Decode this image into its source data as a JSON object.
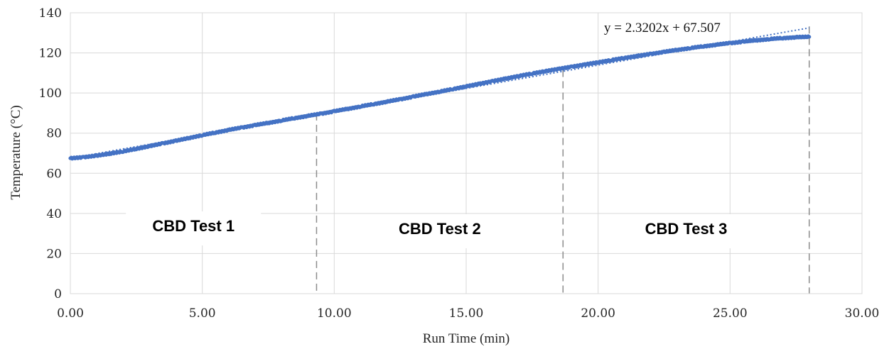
{
  "chart_data": {
    "type": "scatter",
    "title": "",
    "xlabel": "Run Time  (min)",
    "ylabel": "Temperature (°C)",
    "xlim": [
      0,
      30
    ],
    "ylim": [
      0,
      140
    ],
    "x_ticks": [
      "0.00",
      "5.00",
      "10.00",
      "15.00",
      "20.00",
      "25.00",
      "30.00"
    ],
    "y_ticks": [
      "0",
      "20",
      "40",
      "60",
      "80",
      "100",
      "120",
      "140"
    ],
    "grid": true,
    "series": [
      {
        "marker_color": "#4472c4",
        "points": [
          [
            0.0,
            67.5
          ],
          [
            0.5,
            68.0
          ],
          [
            1.0,
            68.8
          ],
          [
            1.5,
            69.8
          ],
          [
            2.0,
            70.9
          ],
          [
            2.5,
            72.2
          ],
          [
            3.0,
            73.5
          ],
          [
            3.5,
            74.9
          ],
          [
            4.0,
            76.2
          ],
          [
            4.5,
            77.6
          ],
          [
            5.0,
            79.0
          ],
          [
            5.5,
            80.3
          ],
          [
            6.0,
            81.6
          ],
          [
            6.5,
            82.8
          ],
          [
            7.0,
            84.0
          ],
          [
            7.5,
            85.1
          ],
          [
            8.0,
            86.3
          ],
          [
            8.5,
            87.5
          ],
          [
            9.0,
            88.6
          ],
          [
            9.5,
            89.7
          ],
          [
            10.0,
            90.9
          ],
          [
            10.5,
            92.1
          ],
          [
            11.0,
            93.3
          ],
          [
            11.5,
            94.5
          ],
          [
            12.0,
            95.7
          ],
          [
            12.5,
            96.9
          ],
          [
            13.0,
            98.2
          ],
          [
            13.5,
            99.5
          ],
          [
            14.0,
            100.7
          ],
          [
            14.5,
            102.0
          ],
          [
            15.0,
            103.3
          ],
          [
            15.5,
            104.6
          ],
          [
            16.0,
            105.9
          ],
          [
            16.5,
            107.2
          ],
          [
            17.0,
            108.5
          ],
          [
            17.5,
            109.7
          ],
          [
            18.0,
            110.9
          ],
          [
            18.5,
            112.0
          ],
          [
            19.0,
            113.1
          ],
          [
            19.5,
            114.2
          ],
          [
            20.0,
            115.3
          ],
          [
            20.5,
            116.4
          ],
          [
            21.0,
            117.5
          ],
          [
            21.5,
            118.5
          ],
          [
            22.0,
            119.5
          ],
          [
            22.5,
            120.5
          ],
          [
            23.0,
            121.5
          ],
          [
            23.5,
            122.4
          ],
          [
            24.0,
            123.3
          ],
          [
            24.5,
            124.1
          ],
          [
            25.0,
            124.9
          ],
          [
            25.5,
            125.6
          ],
          [
            26.0,
            126.3
          ],
          [
            26.5,
            126.9
          ],
          [
            27.0,
            127.4
          ],
          [
            27.5,
            127.8
          ],
          [
            28.0,
            128.0
          ]
        ]
      }
    ],
    "trendline": {
      "equation": "y = 2.3202x  + 67.507",
      "slope": 2.3202,
      "intercept": 67.507,
      "x_range": [
        0,
        28
      ],
      "color": "#4472c4",
      "style": "dotted"
    },
    "regions": [
      {
        "label": "CBD Test 1",
        "x_start": 0,
        "x_end": 9.33
      },
      {
        "label": "CBD Test 2",
        "x_start": 9.33,
        "x_end": 18.67
      },
      {
        "label": "CBD Test 3",
        "x_start": 18.67,
        "x_end": 28.0
      }
    ],
    "divider_x": [
      9.33,
      18.67,
      28.0
    ]
  }
}
